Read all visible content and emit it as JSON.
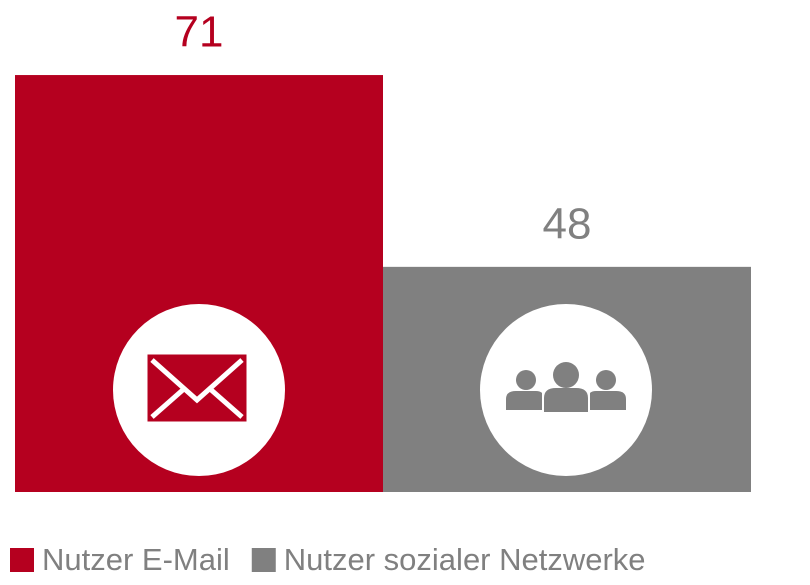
{
  "chart_data": {
    "type": "bar",
    "series": [
      {
        "name": "Nutzer E-Mail",
        "color": "#b5001f",
        "values": [
          71
        ]
      },
      {
        "name": "Nutzer sozialer Netzwerke",
        "color": "#808080",
        "values": [
          48
        ]
      }
    ],
    "ylim": [
      21,
      80
    ],
    "legend": "bottom"
  }
}
